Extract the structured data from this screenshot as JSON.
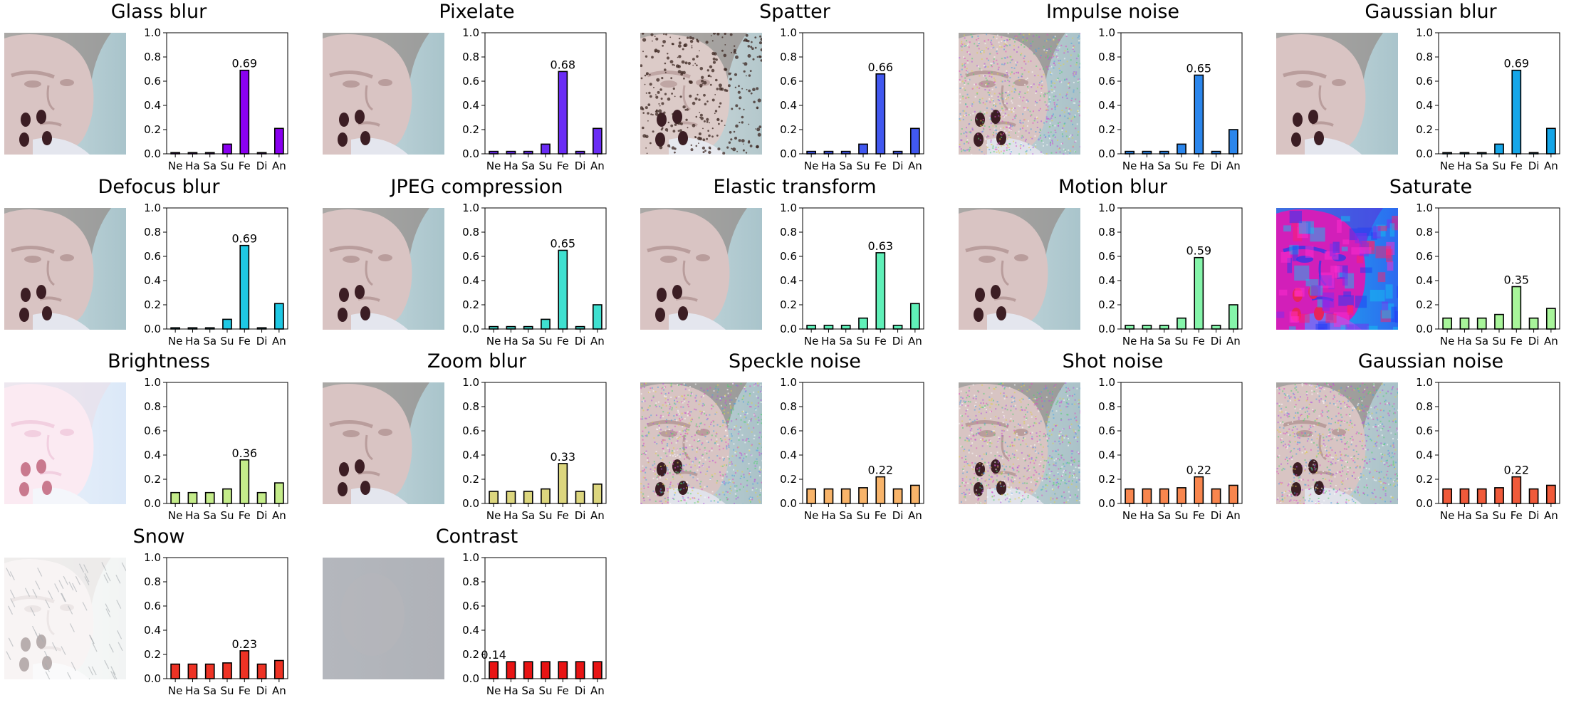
{
  "figure": {
    "background": "#ffffff"
  },
  "categories": [
    "Ne",
    "Ha",
    "Sa",
    "Su",
    "Fe",
    "Di",
    "An"
  ],
  "y_ticks": [
    "0.0",
    "0.2",
    "0.4",
    "0.6",
    "0.8",
    "1.0"
  ],
  "chart_data": [
    {
      "type": "bar",
      "title": "Glass blur",
      "categories": [
        "Ne",
        "Ha",
        "Sa",
        "Su",
        "Fe",
        "Di",
        "An"
      ],
      "values": [
        0.01,
        0.01,
        0.01,
        0.08,
        0.69,
        0.01,
        0.21
      ],
      "ylim": [
        0,
        1
      ],
      "peak_label": "0.69",
      "color": "#8a00f0",
      "thumbnail": "face-blurred"
    },
    {
      "type": "bar",
      "title": "Pixelate",
      "categories": [
        "Ne",
        "Ha",
        "Sa",
        "Su",
        "Fe",
        "Di",
        "An"
      ],
      "values": [
        0.02,
        0.02,
        0.02,
        0.08,
        0.68,
        0.02,
        0.21
      ],
      "ylim": [
        0,
        1
      ],
      "peak_label": "0.68",
      "color": "#6a2cf5",
      "thumbnail": "face-blurred"
    },
    {
      "type": "bar",
      "title": "Spatter",
      "categories": [
        "Ne",
        "Ha",
        "Sa",
        "Su",
        "Fe",
        "Di",
        "An"
      ],
      "values": [
        0.02,
        0.02,
        0.02,
        0.08,
        0.66,
        0.02,
        0.21
      ],
      "ylim": [
        0,
        1
      ],
      "peak_label": "0.66",
      "color": "#4158f0",
      "thumbnail": "face-spatter"
    },
    {
      "type": "bar",
      "title": "Impulse noise",
      "categories": [
        "Ne",
        "Ha",
        "Sa",
        "Su",
        "Fe",
        "Di",
        "An"
      ],
      "values": [
        0.02,
        0.02,
        0.02,
        0.08,
        0.65,
        0.02,
        0.2
      ],
      "ylim": [
        0,
        1
      ],
      "peak_label": "0.65",
      "color": "#2b86ec",
      "thumbnail": "face-noise"
    },
    {
      "type": "bar",
      "title": "Gaussian blur",
      "categories": [
        "Ne",
        "Ha",
        "Sa",
        "Su",
        "Fe",
        "Di",
        "An"
      ],
      "values": [
        0.01,
        0.01,
        0.01,
        0.08,
        0.69,
        0.01,
        0.21
      ],
      "ylim": [
        0,
        1
      ],
      "peak_label": "0.69",
      "color": "#15a6e8",
      "thumbnail": "face-blurred"
    },
    {
      "type": "bar",
      "title": "Defocus blur",
      "categories": [
        "Ne",
        "Ha",
        "Sa",
        "Su",
        "Fe",
        "Di",
        "An"
      ],
      "values": [
        0.01,
        0.01,
        0.01,
        0.08,
        0.69,
        0.01,
        0.21
      ],
      "ylim": [
        0,
        1
      ],
      "peak_label": "0.69",
      "color": "#1ec8e4",
      "thumbnail": "face-blurred"
    },
    {
      "type": "bar",
      "title": "JPEG compression",
      "categories": [
        "Ne",
        "Ha",
        "Sa",
        "Su",
        "Fe",
        "Di",
        "An"
      ],
      "values": [
        0.02,
        0.02,
        0.02,
        0.08,
        0.65,
        0.02,
        0.2
      ],
      "ylim": [
        0,
        1
      ],
      "peak_label": "0.65",
      "color": "#3fe0d0",
      "thumbnail": "face-blurred"
    },
    {
      "type": "bar",
      "title": "Elastic transform",
      "categories": [
        "Ne",
        "Ha",
        "Sa",
        "Su",
        "Fe",
        "Di",
        "An"
      ],
      "values": [
        0.03,
        0.03,
        0.03,
        0.09,
        0.63,
        0.03,
        0.21
      ],
      "ylim": [
        0,
        1
      ],
      "peak_label": "0.63",
      "color": "#5ff0b8",
      "thumbnail": "face-blurred"
    },
    {
      "type": "bar",
      "title": "Motion blur",
      "categories": [
        "Ne",
        "Ha",
        "Sa",
        "Su",
        "Fe",
        "Di",
        "An"
      ],
      "values": [
        0.03,
        0.03,
        0.03,
        0.09,
        0.59,
        0.03,
        0.2
      ],
      "ylim": [
        0,
        1
      ],
      "peak_label": "0.59",
      "color": "#85f5aa",
      "thumbnail": "face-blurred"
    },
    {
      "type": "bar",
      "title": "Saturate",
      "categories": [
        "Ne",
        "Ha",
        "Sa",
        "Su",
        "Fe",
        "Di",
        "An"
      ],
      "values": [
        0.09,
        0.09,
        0.09,
        0.12,
        0.35,
        0.09,
        0.17
      ],
      "ylim": [
        0,
        1
      ],
      "peak_label": "0.35",
      "color": "#a8f59a",
      "thumbnail": "face-saturate"
    },
    {
      "type": "bar",
      "title": "Brightness",
      "categories": [
        "Ne",
        "Ha",
        "Sa",
        "Su",
        "Fe",
        "Di",
        "An"
      ],
      "values": [
        0.09,
        0.09,
        0.09,
        0.12,
        0.36,
        0.09,
        0.17
      ],
      "ylim": [
        0,
        1
      ],
      "peak_label": "0.36",
      "color": "#c4ec8a",
      "thumbnail": "face-bright"
    },
    {
      "type": "bar",
      "title": "Zoom blur",
      "categories": [
        "Ne",
        "Ha",
        "Sa",
        "Su",
        "Fe",
        "Di",
        "An"
      ],
      "values": [
        0.1,
        0.1,
        0.1,
        0.12,
        0.33,
        0.1,
        0.16
      ],
      "ylim": [
        0,
        1
      ],
      "peak_label": "0.33",
      "color": "#dcd67e",
      "thumbnail": "face-blurred"
    },
    {
      "type": "bar",
      "title": "Speckle noise",
      "categories": [
        "Ne",
        "Ha",
        "Sa",
        "Su",
        "Fe",
        "Di",
        "An"
      ],
      "values": [
        0.12,
        0.12,
        0.12,
        0.13,
        0.22,
        0.12,
        0.15
      ],
      "ylim": [
        0,
        1
      ],
      "peak_label": "0.22",
      "color": "#f8b46a",
      "thumbnail": "face-noise"
    },
    {
      "type": "bar",
      "title": "Shot noise",
      "categories": [
        "Ne",
        "Ha",
        "Sa",
        "Su",
        "Fe",
        "Di",
        "An"
      ],
      "values": [
        0.12,
        0.12,
        0.12,
        0.13,
        0.22,
        0.12,
        0.15
      ],
      "ylim": [
        0,
        1
      ],
      "peak_label": "0.22",
      "color": "#f8864e",
      "thumbnail": "face-noise"
    },
    {
      "type": "bar",
      "title": "Gaussian noise",
      "categories": [
        "Ne",
        "Ha",
        "Sa",
        "Su",
        "Fe",
        "Di",
        "An"
      ],
      "values": [
        0.12,
        0.12,
        0.12,
        0.13,
        0.22,
        0.12,
        0.15
      ],
      "ylim": [
        0,
        1
      ],
      "peak_label": "0.22",
      "color": "#f05a3a",
      "thumbnail": "face-noise"
    },
    {
      "type": "bar",
      "title": "Snow",
      "categories": [
        "Ne",
        "Ha",
        "Sa",
        "Su",
        "Fe",
        "Di",
        "An"
      ],
      "values": [
        0.12,
        0.12,
        0.12,
        0.13,
        0.23,
        0.12,
        0.15
      ],
      "ylim": [
        0,
        1
      ],
      "peak_label": "0.23",
      "color": "#ee3224",
      "thumbnail": "face-snow"
    },
    {
      "type": "bar",
      "title": "Contrast",
      "categories": [
        "Ne",
        "Ha",
        "Sa",
        "Su",
        "Fe",
        "Di",
        "An"
      ],
      "values": [
        0.14,
        0.14,
        0.14,
        0.14,
        0.14,
        0.14,
        0.14
      ],
      "ylim": [
        0,
        1
      ],
      "peak_label": "0.14",
      "color": "#e81414",
      "thumbnail": "face-contrast"
    }
  ]
}
